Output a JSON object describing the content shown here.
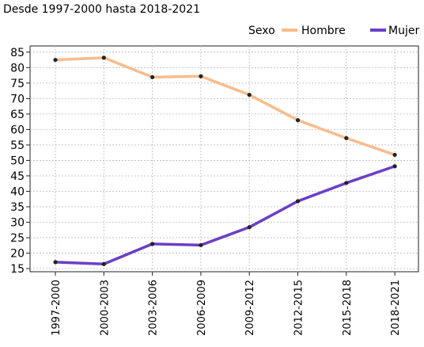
{
  "chart_data": {
    "type": "line",
    "title": "Desde 1997-2000 hasta 2018-2021",
    "legend_title": "Sexo",
    "categories": [
      "1997-2000",
      "2000-2003",
      "2003-2006",
      "2006-2009",
      "2009-2012",
      "2012-2015",
      "2015-2018",
      "2018-2021"
    ],
    "series": [
      {
        "name": "Hombre",
        "color": "#f9bc8c",
        "values": [
          82.5,
          83.2,
          76.9,
          77.2,
          71.2,
          63.0,
          57.2,
          51.8
        ]
      },
      {
        "name": "Mujer",
        "color": "#6a3fc7",
        "values": [
          17.1,
          16.5,
          23.0,
          22.6,
          28.4,
          36.8,
          42.7,
          48.1
        ]
      }
    ],
    "yticks": [
      15,
      20,
      25,
      30,
      35,
      40,
      45,
      50,
      55,
      60,
      65,
      70,
      75,
      80,
      85
    ],
    "ylim": [
      14,
      87
    ],
    "grid": true,
    "legend_position": "top-right",
    "point_color": "#222222"
  }
}
